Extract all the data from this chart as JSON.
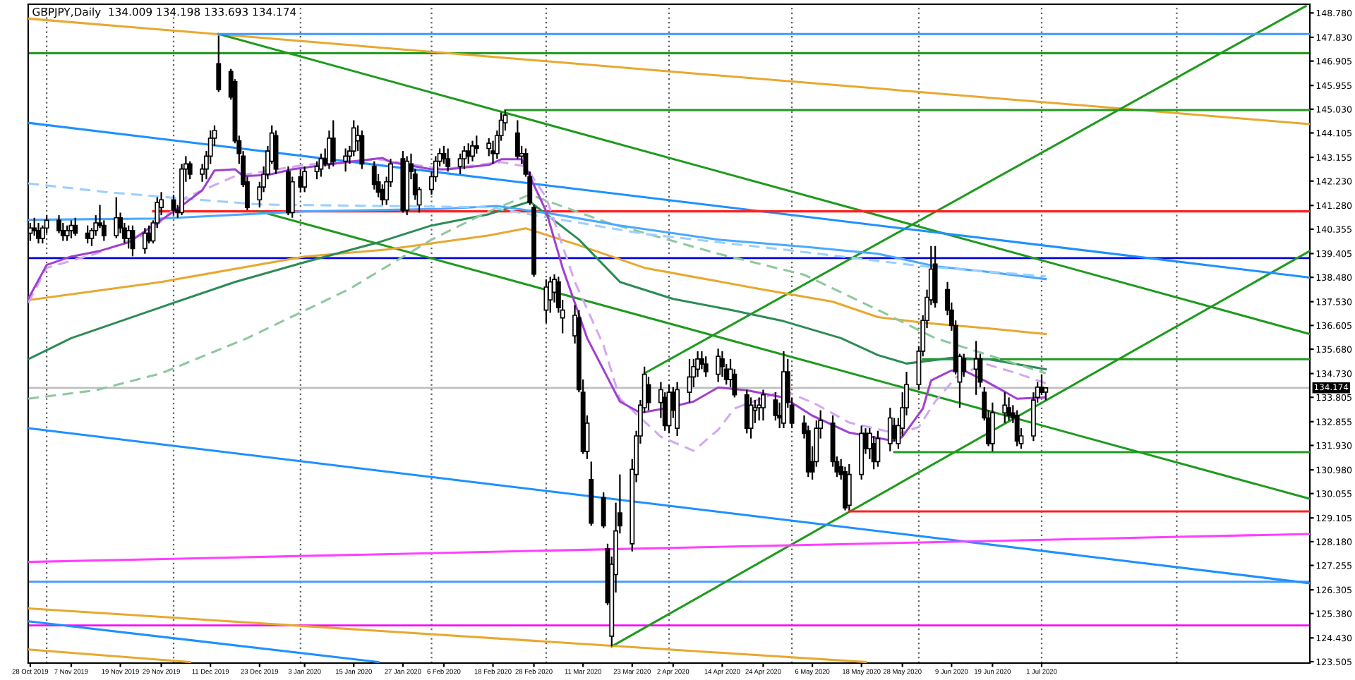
{
  "chart_data": {
    "type": "candlestick",
    "title": "GBPJPY,Daily  134.009 134.198 133.693 134.174",
    "xlim": [
      "2019-10-27T12:00",
      "2020-09-04T12:00"
    ],
    "ylim": [
      123.45,
      149.12
    ],
    "xticks": [
      {
        "value": "2019-10-28",
        "label": "28 Oct 2019"
      },
      {
        "value": "2019-11-07",
        "label": "7 Nov 2019"
      },
      {
        "value": "2019-11-19",
        "label": "19 Nov 2019"
      },
      {
        "value": "2019-11-29",
        "label": "29 Nov 2019"
      },
      {
        "value": "2019-12-11",
        "label": "11 Dec 2019"
      },
      {
        "value": "2019-12-23",
        "label": "23 Dec 2019"
      },
      {
        "value": "2020-01-03",
        "label": "3 Jan 2020"
      },
      {
        "value": "2020-01-15",
        "label": "15 Jan 2020"
      },
      {
        "value": "2020-01-27",
        "label": "27 Jan 2020"
      },
      {
        "value": "2020-02-06",
        "label": "6 Feb 2020"
      },
      {
        "value": "2020-02-18",
        "label": "18 Feb 2020"
      },
      {
        "value": "2020-02-28",
        "label": "28 Feb 2020"
      },
      {
        "value": "2020-03-11",
        "label": "11 Mar 2020"
      },
      {
        "value": "2020-03-23",
        "label": "23 Mar 2020"
      },
      {
        "value": "2020-04-02",
        "label": "2 Apr 2020"
      },
      {
        "value": "2020-04-14",
        "label": "14 Apr 2020"
      },
      {
        "value": "2020-04-24",
        "label": "24 Apr 2020"
      },
      {
        "value": "2020-05-06",
        "label": "6 May 2020"
      },
      {
        "value": "2020-05-18",
        "label": "18 May 2020"
      },
      {
        "value": "2020-05-28",
        "label": "28 May 2020"
      },
      {
        "value": "2020-06-09",
        "label": "9 Jun 2020"
      },
      {
        "value": "2020-06-19",
        "label": "19 Jun 2020"
      },
      {
        "value": "2020-07-01",
        "label": "1 Jul 2020"
      }
    ],
    "yticks": [
      {
        "value": 148.78,
        "label": "148.780"
      },
      {
        "value": 147.83,
        "label": "147.830"
      },
      {
        "value": 146.905,
        "label": "146.905"
      },
      {
        "value": 145.955,
        "label": "145.955"
      },
      {
        "value": 145.03,
        "label": "145.030"
      },
      {
        "value": 144.105,
        "label": "144.105"
      },
      {
        "value": 143.155,
        "label": "143.155"
      },
      {
        "value": 142.23,
        "label": "142.230"
      },
      {
        "value": 141.28,
        "label": "141.280"
      },
      {
        "value": 140.355,
        "label": "140.355"
      },
      {
        "value": 139.405,
        "label": "139.405"
      },
      {
        "value": 138.48,
        "label": "138.480"
      },
      {
        "value": 137.53,
        "label": "137.530"
      },
      {
        "value": 136.605,
        "label": "136.605"
      },
      {
        "value": 135.68,
        "label": "135.680"
      },
      {
        "value": 134.73,
        "label": "134.730"
      },
      {
        "value": 133.805,
        "label": "133.805"
      },
      {
        "value": 132.855,
        "label": "132.855"
      },
      {
        "value": 131.93,
        "label": "131.930"
      },
      {
        "value": 130.98,
        "label": "130.980"
      },
      {
        "value": 130.055,
        "label": "130.055"
      },
      {
        "value": 129.105,
        "label": "129.105"
      },
      {
        "value": 128.18,
        "label": "128.180"
      },
      {
        "value": 127.255,
        "label": "127.255"
      },
      {
        "value": 126.305,
        "label": "126.305"
      },
      {
        "value": 125.38,
        "label": "125.380"
      },
      {
        "value": 124.43,
        "label": "124.430"
      },
      {
        "value": 123.505,
        "label": "123.505"
      }
    ],
    "x": [
      "2019-10-28",
      "2019-10-29",
      "2019-10-30",
      "2019-10-31",
      "2019-11-01",
      "2019-11-04",
      "2019-11-05",
      "2019-11-06",
      "2019-11-07",
      "2019-11-08",
      "2019-11-11",
      "2019-11-12",
      "2019-11-13",
      "2019-11-14",
      "2019-11-15",
      "2019-11-18",
      "2019-11-19",
      "2019-11-20",
      "2019-11-21",
      "2019-11-22",
      "2019-11-25",
      "2019-11-26",
      "2019-11-27",
      "2019-11-28",
      "2019-11-29",
      "2019-12-02",
      "2019-12-03",
      "2019-12-04",
      "2019-12-05",
      "2019-12-06",
      "2019-12-09",
      "2019-12-10",
      "2019-12-11",
      "2019-12-12",
      "2019-12-13",
      "2019-12-16",
      "2019-12-17",
      "2019-12-18",
      "2019-12-19",
      "2019-12-20",
      "2019-12-23",
      "2019-12-24",
      "2019-12-25",
      "2019-12-26",
      "2019-12-27",
      "2019-12-30",
      "2019-12-31",
      "2020-01-02",
      "2020-01-03",
      "2020-01-06",
      "2020-01-07",
      "2020-01-08",
      "2020-01-09",
      "2020-01-10",
      "2020-01-13",
      "2020-01-14",
      "2020-01-15",
      "2020-01-16",
      "2020-01-17",
      "2020-01-20",
      "2020-01-21",
      "2020-01-22",
      "2020-01-23",
      "2020-01-24",
      "2020-01-27",
      "2020-01-28",
      "2020-01-29",
      "2020-01-30",
      "2020-01-31",
      "2020-02-03",
      "2020-02-04",
      "2020-02-05",
      "2020-02-06",
      "2020-02-07",
      "2020-02-10",
      "2020-02-11",
      "2020-02-12",
      "2020-02-13",
      "2020-02-14",
      "2020-02-17",
      "2020-02-18",
      "2020-02-19",
      "2020-02-20",
      "2020-02-21",
      "2020-02-24",
      "2020-02-25",
      "2020-02-26",
      "2020-02-27",
      "2020-02-28",
      "2020-03-02",
      "2020-03-03",
      "2020-03-04",
      "2020-03-05",
      "2020-03-06",
      "2020-03-09",
      "2020-03-10",
      "2020-03-11",
      "2020-03-12",
      "2020-03-13",
      "2020-03-16",
      "2020-03-17",
      "2020-03-18",
      "2020-03-19",
      "2020-03-20",
      "2020-03-23",
      "2020-03-24",
      "2020-03-25",
      "2020-03-26",
      "2020-03-27",
      "2020-03-30",
      "2020-03-31",
      "2020-04-01",
      "2020-04-02",
      "2020-04-03",
      "2020-04-06",
      "2020-04-07",
      "2020-04-08",
      "2020-04-09",
      "2020-04-10",
      "2020-04-13",
      "2020-04-14",
      "2020-04-15",
      "2020-04-16",
      "2020-04-17",
      "2020-04-20",
      "2020-04-21",
      "2020-04-22",
      "2020-04-23",
      "2020-04-24",
      "2020-04-27",
      "2020-04-28",
      "2020-04-29",
      "2020-04-30",
      "2020-05-01",
      "2020-05-04",
      "2020-05-05",
      "2020-05-06",
      "2020-05-07",
      "2020-05-08",
      "2020-05-11",
      "2020-05-12",
      "2020-05-13",
      "2020-05-14",
      "2020-05-15",
      "2020-05-18",
      "2020-05-19",
      "2020-05-20",
      "2020-05-21",
      "2020-05-22",
      "2020-05-25",
      "2020-05-26",
      "2020-05-27",
      "2020-05-28",
      "2020-05-29",
      "2020-06-01",
      "2020-06-02",
      "2020-06-03",
      "2020-06-04",
      "2020-06-05",
      "2020-06-08",
      "2020-06-09",
      "2020-06-10",
      "2020-06-11",
      "2020-06-12",
      "2020-06-15",
      "2020-06-16",
      "2020-06-17",
      "2020-06-18",
      "2020-06-19",
      "2020-06-22",
      "2020-06-23",
      "2020-06-24",
      "2020-06-25",
      "2020-06-26",
      "2020-06-29",
      "2020-06-30",
      "2020-07-01",
      "2020-07-02"
    ],
    "ohlc": [
      [
        140.2,
        140.6,
        139.9,
        140.4
      ],
      [
        140.4,
        140.8,
        140.1,
        140.3
      ],
      [
        140.3,
        140.6,
        139.8,
        140.0
      ],
      [
        140.0,
        140.5,
        139.8,
        140.4
      ],
      [
        140.4,
        140.9,
        140.2,
        140.7
      ],
      [
        140.7,
        140.9,
        140.2,
        140.3
      ],
      [
        140.3,
        140.6,
        139.9,
        140.1
      ],
      [
        140.1,
        140.5,
        139.9,
        140.3
      ],
      [
        140.3,
        140.7,
        140.0,
        140.5
      ],
      [
        140.5,
        140.8,
        140.1,
        140.2
      ],
      [
        140.2,
        140.5,
        139.8,
        140.0
      ],
      [
        140.0,
        140.4,
        139.7,
        140.3
      ],
      [
        140.3,
        140.9,
        140.1,
        140.6
      ],
      [
        140.6,
        141.3,
        140.4,
        140.5
      ],
      [
        140.5,
        140.7,
        139.9,
        140.1
      ],
      [
        140.1,
        141.6,
        140.0,
        140.8
      ],
      [
        140.8,
        141.0,
        140.2,
        140.4
      ],
      [
        140.4,
        140.6,
        139.8,
        140.0
      ],
      [
        140.0,
        140.5,
        139.6,
        140.3
      ],
      [
        140.3,
        140.5,
        139.3,
        139.6
      ],
      [
        139.6,
        140.4,
        139.4,
        140.2
      ],
      [
        140.2,
        140.5,
        139.8,
        139.9
      ],
      [
        139.9,
        140.7,
        139.8,
        140.6
      ],
      [
        140.6,
        141.6,
        140.4,
        141.4
      ],
      [
        141.2,
        141.8,
        140.9,
        141.5
      ],
      [
        141.5,
        141.7,
        140.9,
        141.1
      ],
      [
        141.1,
        141.3,
        140.8,
        141.0
      ],
      [
        141.0,
        142.9,
        140.9,
        142.7
      ],
      [
        142.7,
        143.2,
        142.2,
        142.9
      ],
      [
        142.9,
        143.0,
        142.3,
        142.5
      ],
      [
        142.5,
        142.9,
        142.2,
        142.7
      ],
      [
        142.7,
        143.4,
        142.3,
        143.2
      ],
      [
        143.2,
        144.2,
        142.9,
        143.9
      ],
      [
        143.9,
        144.4,
        143.6,
        144.2
      ],
      [
        146.8,
        147.9,
        145.7,
        145.8
      ],
      [
        146.5,
        146.6,
        145.4,
        145.5
      ],
      [
        146.1,
        146.2,
        143.7,
        143.8
      ],
      [
        143.8,
        144.0,
        142.9,
        143.3
      ],
      [
        143.2,
        143.4,
        142.0,
        142.1
      ],
      [
        142.2,
        142.4,
        141.1,
        141.2
      ],
      [
        141.5,
        142.2,
        141.2,
        142.0
      ],
      [
        142.0,
        142.8,
        141.8,
        142.5
      ],
      [
        142.5,
        143.6,
        142.3,
        143.4
      ],
      [
        143.0,
        144.4,
        142.9,
        144.1
      ],
      [
        144.0,
        144.2,
        142.5,
        142.7
      ],
      [
        142.6,
        142.8,
        140.9,
        141.0
      ],
      [
        141.0,
        142.4,
        140.8,
        142.2
      ],
      [
        142.4,
        142.7,
        141.8,
        142.0
      ],
      [
        142.0,
        142.8,
        141.8,
        142.6
      ],
      [
        142.6,
        143.0,
        142.3,
        142.8
      ],
      [
        142.7,
        143.3,
        142.4,
        143.1
      ],
      [
        143.1,
        143.5,
        142.8,
        142.9
      ],
      [
        142.9,
        144.2,
        142.7,
        143.9
      ],
      [
        143.9,
        144.6,
        142.8,
        143.0
      ],
      [
        143.0,
        143.5,
        142.6,
        143.2
      ],
      [
        143.2,
        143.6,
        142.9,
        143.4
      ],
      [
        143.4,
        144.6,
        143.2,
        144.3
      ],
      [
        143.8,
        144.4,
        143.4,
        144.0
      ],
      [
        144.0,
        144.2,
        142.7,
        142.9
      ],
      [
        142.8,
        143.0,
        141.9,
        142.1
      ],
      [
        142.2,
        142.5,
        141.6,
        141.8
      ],
      [
        141.9,
        142.1,
        141.3,
        141.5
      ],
      [
        141.5,
        142.4,
        141.3,
        142.2
      ],
      [
        142.2,
        143.1,
        142.0,
        142.9
      ],
      [
        143.1,
        143.4,
        141.0,
        141.1
      ],
      [
        141.1,
        143.2,
        140.9,
        143.0
      ],
      [
        142.9,
        143.3,
        142.3,
        142.6
      ],
      [
        142.5,
        142.7,
        141.5,
        141.7
      ],
      [
        141.3,
        142.0,
        141.0,
        141.9
      ],
      [
        141.9,
        142.6,
        141.7,
        142.4
      ],
      [
        142.4,
        143.2,
        142.2,
        143.0
      ],
      [
        143.0,
        143.5,
        142.8,
        143.3
      ],
      [
        143.3,
        143.6,
        142.9,
        143.1
      ],
      [
        143.1,
        143.5,
        142.6,
        142.8
      ],
      [
        142.8,
        143.3,
        142.5,
        143.1
      ],
      [
        143.1,
        143.6,
        142.7,
        143.4
      ],
      [
        143.4,
        143.7,
        142.9,
        143.2
      ],
      [
        143.2,
        143.8,
        143.0,
        143.6
      ],
      [
        143.6,
        144.0,
        143.3,
        143.5
      ],
      [
        143.5,
        143.9,
        143.2,
        143.7
      ],
      [
        143.4,
        143.8,
        142.9,
        143.3
      ],
      [
        143.3,
        144.2,
        143.1,
        144.0
      ],
      [
        144.0,
        144.9,
        143.8,
        144.6
      ],
      [
        144.5,
        145.0,
        144.2,
        144.8
      ],
      [
        144.1,
        144.6,
        143.1,
        143.2
      ],
      [
        143.2,
        143.6,
        142.9,
        143.3
      ],
      [
        143.3,
        143.5,
        142.4,
        142.5
      ],
      [
        142.4,
        142.6,
        141.3,
        141.4
      ],
      [
        141.2,
        141.3,
        138.5,
        138.6
      ],
      [
        137.2,
        138.4,
        136.7,
        138.1
      ],
      [
        137.6,
        138.5,
        137.1,
        138.3
      ],
      [
        137.9,
        138.6,
        137.5,
        138.4
      ],
      [
        138.3,
        138.5,
        137.1,
        137.3
      ],
      [
        136.9,
        137.6,
        136.3,
        137.2
      ],
      [
        136.2,
        137.4,
        135.9,
        137.0
      ],
      [
        136.9,
        137.2,
        134.0,
        134.1
      ],
      [
        134.0,
        134.5,
        131.6,
        131.7
      ],
      [
        131.7,
        133.1,
        131.4,
        132.8
      ],
      [
        130.6,
        131.3,
        128.8,
        128.9
      ],
      [
        129.9,
        130.1,
        128.7,
        128.8
      ],
      [
        127.9,
        128.1,
        125.7,
        125.8
      ],
      [
        124.5,
        127.6,
        124.1,
        127.3
      ],
      [
        126.9,
        129.7,
        126.2,
        128.6
      ],
      [
        129.3,
        130.8,
        128.5,
        128.8
      ],
      [
        128.1,
        131.4,
        127.8,
        131.0
      ],
      [
        130.8,
        132.5,
        130.5,
        132.3
      ],
      [
        132.3,
        133.7,
        132.0,
        133.5
      ],
      [
        133.4,
        135.0,
        133.2,
        134.7
      ],
      [
        134.3,
        134.6,
        133.3,
        133.6
      ],
      [
        133.6,
        134.4,
        133.0,
        134.1
      ],
      [
        133.8,
        134.0,
        132.5,
        132.7
      ],
      [
        132.7,
        134.3,
        132.4,
        134.0
      ],
      [
        134.0,
        134.2,
        133.0,
        133.3
      ],
      [
        132.6,
        134.4,
        132.3,
        134.1
      ],
      [
        134.0,
        135.3,
        133.6,
        134.6
      ],
      [
        134.6,
        135.3,
        134.2,
        135.0
      ],
      [
        134.9,
        135.6,
        134.6,
        135.3
      ],
      [
        135.3,
        135.6,
        134.9,
        135.1
      ],
      [
        135.1,
        135.4,
        134.6,
        134.8
      ],
      [
        134.7,
        135.7,
        134.4,
        135.4
      ],
      [
        135.3,
        135.6,
        134.6,
        135.0
      ],
      [
        134.9,
        135.1,
        134.3,
        134.5
      ],
      [
        134.5,
        135.3,
        134.2,
        134.9
      ],
      [
        134.7,
        134.9,
        133.8,
        133.9
      ],
      [
        133.9,
        134.1,
        132.4,
        132.6
      ],
      [
        132.6,
        133.8,
        132.2,
        133.5
      ],
      [
        133.3,
        133.7,
        132.8,
        133.4
      ],
      [
        133.4,
        133.8,
        132.9,
        133.5
      ],
      [
        133.4,
        134.1,
        132.9,
        133.9
      ],
      [
        133.7,
        134.0,
        132.9,
        133.1
      ],
      [
        133.1,
        133.6,
        132.6,
        133.0
      ],
      [
        132.8,
        135.6,
        132.6,
        134.8
      ],
      [
        134.8,
        135.3,
        133.4,
        133.6
      ],
      [
        133.5,
        133.8,
        132.6,
        132.8
      ],
      [
        132.8,
        133.1,
        132.2,
        132.4
      ],
      [
        132.5,
        132.7,
        130.7,
        130.9
      ],
      [
        131.3,
        131.9,
        130.6,
        130.9
      ],
      [
        131.3,
        132.9,
        131.1,
        132.6
      ],
      [
        132.6,
        133.3,
        132.2,
        132.9
      ],
      [
        132.8,
        133.1,
        131.1,
        131.3
      ],
      [
        131.3,
        131.5,
        130.7,
        130.9
      ],
      [
        131.1,
        131.4,
        130.6,
        130.8
      ],
      [
        130.9,
        131.1,
        129.4,
        129.5
      ],
      [
        129.6,
        131.2,
        129.4,
        130.8
      ],
      [
        130.8,
        132.7,
        130.6,
        132.4
      ],
      [
        132.4,
        132.6,
        131.6,
        131.8
      ],
      [
        131.8,
        132.6,
        131.4,
        132.4
      ],
      [
        132.0,
        132.3,
        131.0,
        131.3
      ],
      [
        131.3,
        132.5,
        131.1,
        132.2
      ],
      [
        132.0,
        133.4,
        131.7,
        133.0
      ],
      [
        132.7,
        133.0,
        132.1,
        132.2
      ],
      [
        132.0,
        133.0,
        131.8,
        132.7
      ],
      [
        132.6,
        134.0,
        132.3,
        133.4
      ],
      [
        133.4,
        134.8,
        133.1,
        134.3
      ],
      [
        134.3,
        135.8,
        134.1,
        135.6
      ],
      [
        135.6,
        137.0,
        135.4,
        136.8
      ],
      [
        136.8,
        138.0,
        136.5,
        137.7
      ],
      [
        137.6,
        139.7,
        137.4,
        138.8
      ],
      [
        139.0,
        139.7,
        137.3,
        137.5
      ],
      [
        138.0,
        138.3,
        137.0,
        137.2
      ],
      [
        137.2,
        137.5,
        136.4,
        136.6
      ],
      [
        136.6,
        136.8,
        134.7,
        134.8
      ],
      [
        134.4,
        135.5,
        133.4,
        135.4
      ],
      [
        135.3,
        135.5,
        134.6,
        134.8
      ],
      [
        134.9,
        136.0,
        133.9,
        135.3
      ],
      [
        135.3,
        135.5,
        134.2,
        134.4
      ],
      [
        134.0,
        134.2,
        132.9,
        133.0
      ],
      [
        133.0,
        133.3,
        131.9,
        132.0
      ],
      [
        132.0,
        133.6,
        131.7,
        133.2
      ],
      [
        133.2,
        134.0,
        132.8,
        133.5
      ],
      [
        133.4,
        133.8,
        132.9,
        133.1
      ],
      [
        133.2,
        133.5,
        132.8,
        133.0
      ],
      [
        133.1,
        133.3,
        131.9,
        132.1
      ],
      [
        132.0,
        132.6,
        131.8,
        132.3
      ],
      [
        132.3,
        134.0,
        132.1,
        133.7
      ],
      [
        133.8,
        134.4,
        133.6,
        134.2
      ],
      [
        134.2,
        134.7,
        133.9,
        134.0
      ],
      [
        134.009,
        134.198,
        133.693,
        134.174
      ]
    ],
    "color": "#000000",
    "ref_lines": [
      {
        "axis": "y",
        "value": 147.21,
        "color": "#1f9a1f"
      },
      {
        "axis": "y",
        "value": 139.23,
        "color": "#0000e0"
      },
      {
        "axis": "y",
        "value": 126.62,
        "color": "#3c9bff"
      },
      {
        "axis": "y",
        "value": 124.92,
        "color": "#ff00ff"
      },
      {
        "axis": "y",
        "value": 134.174,
        "label": "134.174",
        "color": "#c0c0c0"
      },
      {
        "axis": "x",
        "value": "2019-11-01",
        "color": "#606060",
        "line_style": "dotted"
      },
      {
        "axis": "x",
        "value": "2019-12-02",
        "color": "#606060",
        "line_style": "dotted"
      },
      {
        "axis": "x",
        "value": "2020-01-02",
        "color": "#606060",
        "line_style": "dotted"
      },
      {
        "axis": "x",
        "value": "2020-02-03",
        "color": "#606060",
        "line_style": "dotted"
      },
      {
        "axis": "x",
        "value": "2020-03-02",
        "color": "#606060",
        "line_style": "dotted"
      },
      {
        "axis": "x",
        "value": "2020-04-01",
        "color": "#606060",
        "line_style": "dotted"
      },
      {
        "axis": "x",
        "value": "2020-05-01",
        "color": "#606060",
        "line_style": "dotted"
      },
      {
        "axis": "x",
        "value": "2020-06-01",
        "color": "#606060",
        "line_style": "dotted"
      },
      {
        "axis": "x",
        "value": "2020-07-01",
        "color": "#606060",
        "line_style": "dotted"
      },
      {
        "axis": "x",
        "value": "2020-08-03",
        "color": "#606060",
        "line_style": "dotted"
      }
    ],
    "series": [
      {
        "type": "line",
        "color": "#e8a830",
        "line_style": "solid",
        "x": [
          "2019-10-27T12:00",
          "2020-09-04T12:00"
        ],
        "values": [
          148.56,
          144.45
        ]
      },
      {
        "type": "line",
        "color": "#1f9a1f",
        "line_style": "solid",
        "x": [
          "2019-12-13",
          "2020-09-04T12:00"
        ],
        "values": [
          147.96,
          136.27
        ]
      },
      {
        "type": "line",
        "color": "#1f9a1f",
        "line_style": "solid",
        "x": [
          "2020-03-26",
          "2020-09-03T12:00"
        ],
        "values": [
          134.74,
          149.05
        ]
      },
      {
        "type": "line",
        "color": "#1f9a1f",
        "line_style": "solid",
        "x": [
          "2020-03-18",
          "2020-09-04T12:00"
        ],
        "values": [
          124.1,
          139.51
        ]
      },
      {
        "type": "line",
        "color": "#1e90ff",
        "line_style": "solid",
        "x": [
          "2019-10-27T12:00",
          "2020-09-04T12:00"
        ],
        "values": [
          144.5,
          138.47
        ]
      },
      {
        "type": "line",
        "color": "#1e90ff",
        "line_style": "solid",
        "x": [
          "2019-10-27T12:00",
          "2020-09-04T12:00"
        ],
        "values": [
          132.6,
          126.56
        ]
      },
      {
        "type": "line",
        "color": "#1e90ff",
        "line_style": "solid",
        "x": [
          "2019-10-27T12:00",
          "2020-01-21"
        ],
        "values": [
          125.08,
          123.49
        ]
      },
      {
        "type": "line",
        "color": "#e8a830",
        "line_style": "solid",
        "x": [
          "2019-10-27T12:00",
          "2020-05-19"
        ],
        "values": [
          125.58,
          123.49
        ]
      },
      {
        "type": "line",
        "color": "#e8a830",
        "line_style": "solid",
        "x": [
          "2019-10-27T12:00",
          "2019-12-06"
        ],
        "values": [
          123.98,
          123.49
        ]
      },
      {
        "type": "line",
        "color": "#ff40ff",
        "line_style": "solid",
        "x": [
          "2019-10-27T12:00",
          "2020-09-04T12:00"
        ],
        "values": [
          127.39,
          128.48
        ]
      },
      {
        "type": "line",
        "color": "#3c9bff",
        "line_style": "solid",
        "x": [
          "2019-12-13",
          "2020-09-04T12:00"
        ],
        "values": [
          147.96,
          147.96
        ]
      },
      {
        "type": "line",
        "color": "#1f9a1f",
        "line_style": "solid",
        "x": [
          "2020-02-21",
          "2020-09-04T12:00"
        ],
        "values": [
          145.0,
          145.0
        ]
      },
      {
        "type": "line",
        "color": "#ff2020",
        "line_style": "solid",
        "x": [
          "2019-11-27",
          "2020-09-04T12:00"
        ],
        "values": [
          141.05,
          141.05
        ]
      },
      {
        "type": "line",
        "color": "#1f9a1f",
        "line_style": "solid",
        "x": [
          "2020-06-02",
          "2020-09-04T12:00"
        ],
        "values": [
          135.29,
          135.29
        ]
      },
      {
        "type": "line",
        "color": "#1f9a1f",
        "line_style": "solid",
        "x": [
          "2020-05-26",
          "2020-09-04T12:00"
        ],
        "values": [
          131.67,
          131.67
        ]
      },
      {
        "type": "line",
        "color": "#ff2020",
        "line_style": "solid",
        "x": [
          "2020-05-15",
          "2020-09-04T12:00"
        ],
        "values": [
          129.36,
          129.36
        ]
      },
      {
        "type": "line",
        "color": "#1f9a1f",
        "line_style": "solid",
        "x": [
          "2019-12-23",
          "2020-09-04T12:00"
        ],
        "values": [
          141.05,
          129.85
        ]
      },
      {
        "type": "line",
        "color": "#e8a830",
        "line_style": "solid",
        "x": [
          "2019-10-27T12:00",
          "2019-11-29",
          "2020-01-03",
          "2020-01-23",
          "2020-02-17",
          "2020-02-26",
          "2020-03-10",
          "2020-03-26",
          "2020-04-23",
          "2020-05-11",
          "2020-05-22",
          "2020-06-02",
          "2020-06-18",
          "2020-07-02"
        ],
        "values": [
          137.59,
          138.3,
          139.29,
          139.56,
          140.11,
          140.39,
          139.73,
          138.85,
          138.03,
          137.53,
          136.93,
          136.71,
          136.49,
          136.27
        ]
      },
      {
        "type": "line",
        "color": "#2e8b57",
        "line_style": "solid",
        "x": [
          "2019-10-27T12:00",
          "2019-11-07",
          "2019-11-29",
          "2019-12-17",
          "2020-01-03",
          "2020-01-21",
          "2020-02-03",
          "2020-02-17",
          "2020-02-27",
          "2020-03-10",
          "2020-03-20",
          "2020-04-02",
          "2020-04-16",
          "2020-04-29",
          "2020-05-13",
          "2020-05-22",
          "2020-05-29",
          "2020-06-09",
          "2020-06-18",
          "2020-07-02"
        ],
        "values": [
          135.29,
          136.11,
          137.32,
          138.3,
          139.07,
          139.84,
          140.5,
          140.94,
          141.43,
          139.95,
          138.3,
          137.64,
          137.21,
          136.77,
          136.11,
          135.45,
          135.12,
          135.34,
          135.29,
          134.9
        ]
      },
      {
        "type": "line",
        "color": "#8fc89f",
        "line_style": "dashed",
        "x": [
          "2019-10-27T12:00",
          "2019-11-13",
          "2019-11-29",
          "2019-12-20",
          "2020-01-14",
          "2020-02-03",
          "2020-02-17",
          "2020-02-27",
          "2020-03-17",
          "2020-04-13",
          "2020-05-04",
          "2020-05-22",
          "2020-06-05",
          "2020-06-18",
          "2020-07-02"
        ],
        "values": [
          133.75,
          134.08,
          134.74,
          136.11,
          138.03,
          139.95,
          141.05,
          141.7,
          140.61,
          139.4,
          138.58,
          137.21,
          136.11,
          135.45,
          134.74
        ]
      },
      {
        "type": "line",
        "color": "#4aa8ff",
        "line_style": "solid",
        "x": [
          "2019-10-27T12:00",
          "2019-11-29",
          "2020-01-03",
          "2020-02-06",
          "2020-02-19",
          "2020-03-04",
          "2020-03-20",
          "2020-04-13",
          "2020-05-04",
          "2020-05-22",
          "2020-06-05",
          "2020-06-18",
          "2020-07-02"
        ],
        "values": [
          140.72,
          140.77,
          141.05,
          141.15,
          141.26,
          140.94,
          140.5,
          139.95,
          139.67,
          139.4,
          138.91,
          138.69,
          138.41
        ]
      },
      {
        "type": "line",
        "color": "#9ccfff",
        "line_style": "dashed",
        "x": [
          "2019-10-27T12:00",
          "2019-11-15",
          "2019-12-05",
          "2019-12-23",
          "2020-01-21",
          "2020-02-17",
          "2020-03-04",
          "2020-03-26",
          "2020-04-29",
          "2020-06-02",
          "2020-07-02"
        ],
        "values": [
          142.14,
          141.81,
          141.54,
          141.32,
          141.26,
          141.21,
          140.77,
          140.17,
          139.56,
          138.91,
          138.52
        ]
      },
      {
        "type": "line",
        "color": "#d2a8f0",
        "line_style": "dashed",
        "x": [
          "2019-10-27T12:00",
          "2019-11-01",
          "2019-11-13",
          "2019-11-26",
          "2019-12-05",
          "2019-12-17",
          "2020-01-03",
          "2020-01-21",
          "2020-02-06",
          "2020-02-20",
          "2020-02-26",
          "2020-03-02",
          "2020-03-09",
          "2020-03-16",
          "2020-03-20",
          "2020-03-30",
          "2020-04-07",
          "2020-04-13",
          "2020-04-17",
          "2020-04-29",
          "2020-05-07",
          "2020-05-15",
          "2020-05-27",
          "2020-06-01",
          "2020-06-05",
          "2020-06-10",
          "2020-06-17",
          "2020-06-25",
          "2020-07-02"
        ],
        "values": [
          137.48,
          138.85,
          139.4,
          140.22,
          141.59,
          142.42,
          142.86,
          143.08,
          142.69,
          142.97,
          142.8,
          141.59,
          138.3,
          135.83,
          133.75,
          132.27,
          131.72,
          132.54,
          133.37,
          134.08,
          133.53,
          132.82,
          132.38,
          132.65,
          133.64,
          134.57,
          135.12,
          134.74,
          134.35
        ]
      },
      {
        "type": "line",
        "color": "#a040d0",
        "line_style": "solid",
        "x": [
          "2019-10-27T12:00",
          "2019-11-01",
          "2019-11-07",
          "2019-11-14",
          "2019-11-21",
          "2019-11-27",
          "2019-12-03",
          "2019-12-09",
          "2019-12-12",
          "2019-12-17",
          "2019-12-19",
          "2019-12-25",
          "2019-12-31",
          "2020-01-08",
          "2020-01-16",
          "2020-01-22",
          "2020-01-24",
          "2020-02-03",
          "2020-02-07",
          "2020-02-17",
          "2020-02-20",
          "2020-02-25",
          "2020-02-27",
          "2020-03-02",
          "2020-03-06",
          "2020-03-12",
          "2020-03-17",
          "2020-03-20",
          "2020-03-25",
          "2020-03-31",
          "2020-04-07",
          "2020-04-13",
          "2020-04-20",
          "2020-04-29",
          "2020-05-06",
          "2020-05-15",
          "2020-05-26",
          "2020-05-28",
          "2020-06-02",
          "2020-06-04",
          "2020-06-09",
          "2020-06-12",
          "2020-06-17",
          "2020-06-22",
          "2020-06-25",
          "2020-07-02"
        ],
        "values": [
          137.64,
          138.96,
          139.29,
          139.51,
          139.84,
          140.5,
          141.15,
          141.87,
          142.64,
          142.69,
          142.42,
          142.47,
          142.69,
          142.86,
          143.02,
          143.13,
          142.97,
          142.69,
          142.69,
          142.86,
          143.08,
          143.08,
          142.42,
          141.05,
          138.85,
          136.11,
          134.57,
          133.64,
          133.2,
          133.37,
          133.64,
          134.19,
          134.08,
          133.8,
          133.09,
          132.43,
          132.1,
          132.27,
          133.37,
          134.46,
          134.85,
          134.85,
          134.46,
          134.02,
          133.75,
          133.8
        ]
      }
    ]
  }
}
